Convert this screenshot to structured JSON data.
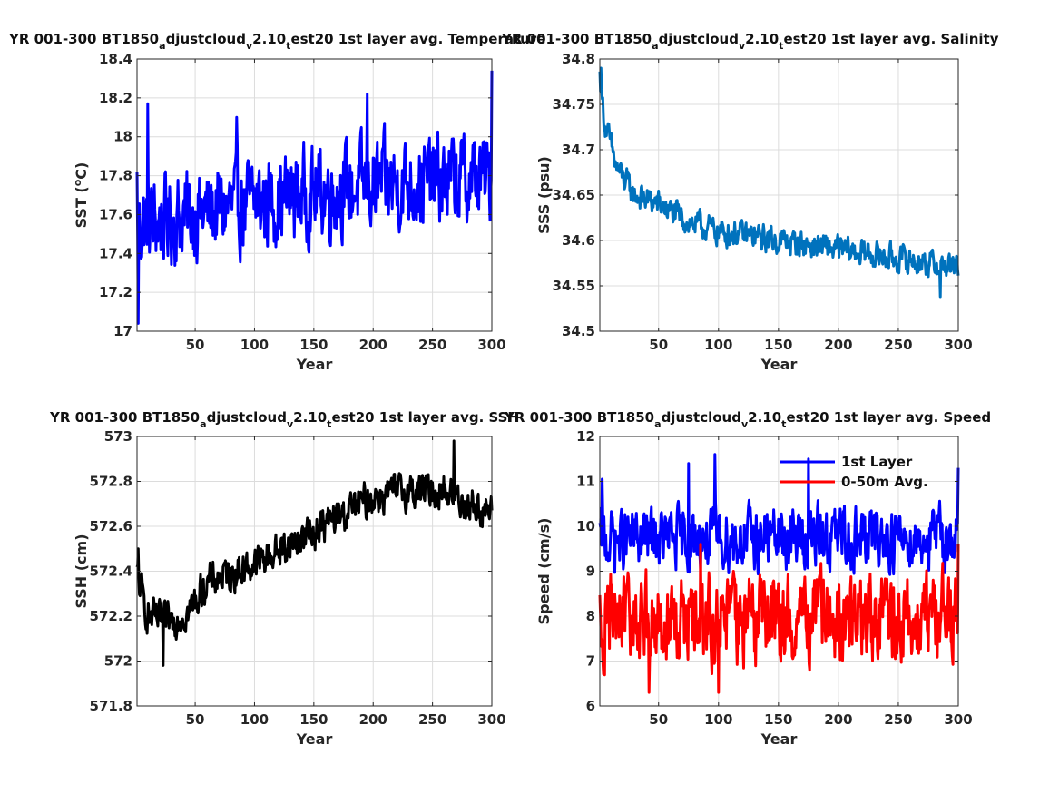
{
  "figure": {
    "background": "#ffffff"
  },
  "chart_data": [
    {
      "type": "line",
      "title": "YR 001-300 BT1850_adjustcloud_v2.10_test20 1st layer avg. Temperature",
      "title_parts": [
        "YR 001-300 BT1850",
        "a",
        "djustcloud",
        "v",
        "2.10",
        "t",
        "est20 1st layer avg. Temperature"
      ],
      "xlabel": "Year",
      "ylabel": "SST (",
      "ylabel_sup": "o",
      "ylabel_tail": "C)",
      "xlim": [
        1,
        300
      ],
      "ylim": [
        17,
        18.4
      ],
      "xticks": [
        50,
        100,
        150,
        200,
        250,
        300
      ],
      "yticks": [
        17,
        17.2,
        17.4,
        17.6,
        17.8,
        18,
        18.2,
        18.4
      ],
      "grid": true,
      "series": [
        {
          "color": "#0000ff",
          "linewidth": 3,
          "x_start": 1,
          "x_step": 1,
          "trend": [
            [
              1,
              17.55
            ],
            [
              50,
              17.6
            ],
            [
              100,
              17.66
            ],
            [
              150,
              17.71
            ],
            [
              200,
              17.75
            ],
            [
              250,
              17.77
            ],
            [
              300,
              17.79
            ]
          ],
          "amplitude": 0.22,
          "peaks": [
            [
              1,
              17.82
            ],
            [
              2,
              17.04
            ],
            [
              10,
              18.17
            ],
            [
              85,
              18.1
            ],
            [
              195,
              18.22
            ],
            [
              300,
              18.34
            ]
          ]
        }
      ]
    },
    {
      "type": "line",
      "title": "YR 001-300 BT1850_adjustcloud_v2.10_test20 1st layer avg. Salinity",
      "title_parts": [
        "YR 001-300 BT1850",
        "a",
        "djustcloud",
        "v",
        "2.10",
        "t",
        "est20 1st layer avg. Salinity"
      ],
      "xlabel": "Year",
      "ylabel": "SSS (psu)",
      "xlim": [
        1,
        300
      ],
      "ylim": [
        34.5,
        34.8
      ],
      "xticks": [
        50,
        100,
        150,
        200,
        250,
        300
      ],
      "yticks": [
        34.5,
        34.55,
        34.6,
        34.65,
        34.7,
        34.75,
        34.8
      ],
      "grid": true,
      "series": [
        {
          "color": "#0072bd",
          "linewidth": 3,
          "x_start": 1,
          "x_step": 1,
          "trend": [
            [
              1,
              34.78
            ],
            [
              5,
              34.73
            ],
            [
              15,
              34.68
            ],
            [
              30,
              34.65
            ],
            [
              50,
              34.64
            ],
            [
              75,
              34.62
            ],
            [
              100,
              34.61
            ],
            [
              150,
              34.6
            ],
            [
              200,
              34.59
            ],
            [
              250,
              34.58
            ],
            [
              300,
              34.57
            ]
          ],
          "amplitude": 0.014,
          "peaks": [
            [
              2,
              34.79
            ],
            [
              285,
              34.538
            ]
          ]
        }
      ]
    },
    {
      "type": "line",
      "title": "YR 001-300 BT1850_adjustcloud_v2.10_test20 1st layer avg. SSH",
      "title_parts": [
        "YR 001-300 BT1850",
        "a",
        "djustcloud",
        "v",
        "2.10",
        "t",
        "est20 1st layer avg. SSH"
      ],
      "xlabel": "Year",
      "ylabel": "SSH (cm)",
      "xlim": [
        1,
        300
      ],
      "ylim": [
        571.8,
        573
      ],
      "xticks": [
        50,
        100,
        150,
        200,
        250,
        300
      ],
      "yticks": [
        571.8,
        572,
        572.2,
        572.4,
        572.6,
        572.8,
        573
      ],
      "grid": true,
      "series": [
        {
          "color": "#000000",
          "linewidth": 3,
          "x_start": 1,
          "x_step": 1,
          "trend": [
            [
              1,
              572.38
            ],
            [
              10,
              572.2
            ],
            [
              25,
              572.17
            ],
            [
              45,
              572.22
            ],
            [
              60,
              572.35
            ],
            [
              100,
              572.43
            ],
            [
              150,
              572.58
            ],
            [
              200,
              572.73
            ],
            [
              230,
              572.76
            ],
            [
              260,
              572.76
            ],
            [
              280,
              572.7
            ],
            [
              300,
              572.66
            ]
          ],
          "amplitude": 0.075,
          "peaks": [
            [
              2,
              572.5
            ],
            [
              23,
              571.98
            ],
            [
              268,
              572.98
            ]
          ]
        }
      ]
    },
    {
      "type": "line",
      "title": "YR 001-300 BT1850_adjustcloud_v2.10_test20 1st layer avg. Speed",
      "title_parts": [
        "YR 001-300 BT1850",
        "a",
        "djustcloud",
        "v",
        "2.10",
        "t",
        "est20 1st layer avg. Speed"
      ],
      "xlabel": "Year",
      "ylabel": "Speed (cm/s)",
      "xlim": [
        1,
        300
      ],
      "ylim": [
        6,
        12
      ],
      "xticks": [
        50,
        100,
        150,
        200,
        250,
        300
      ],
      "yticks": [
        6,
        7,
        8,
        9,
        10,
        11,
        12
      ],
      "grid": true,
      "legend": {
        "position": "top-right"
      },
      "series": [
        {
          "name": "1st Layer",
          "color": "#0000ff",
          "linewidth": 3,
          "x_start": 1,
          "x_step": 1,
          "trend": [
            [
              1,
              9.7
            ],
            [
              300,
              9.75
            ]
          ],
          "amplitude": 0.65,
          "peaks": [
            [
              3,
              11.05
            ],
            [
              75,
              11.4
            ],
            [
              97,
              11.6
            ],
            [
              175,
              11.5
            ],
            [
              300,
              11.3
            ]
          ]
        },
        {
          "name": "0-50m Avg.",
          "color": "#ff0000",
          "linewidth": 3,
          "x_start": 1,
          "x_step": 1,
          "trend": [
            [
              1,
              7.9
            ],
            [
              300,
              7.95
            ]
          ],
          "amplitude": 0.95,
          "peaks": [
            [
              42,
              6.3
            ],
            [
              100,
              6.3
            ],
            [
              85,
              9.6
            ],
            [
              300,
              9.6
            ]
          ]
        }
      ]
    }
  ]
}
